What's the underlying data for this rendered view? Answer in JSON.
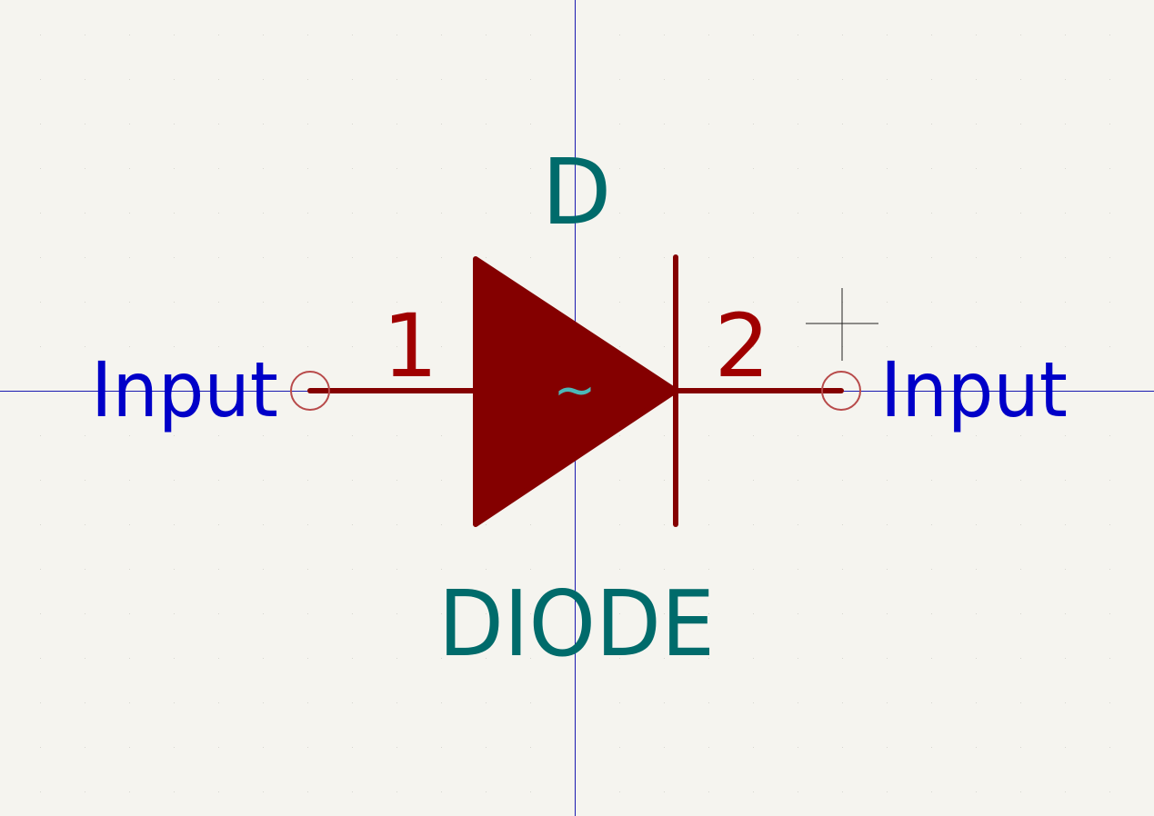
{
  "colors": {
    "background": "#f5f4ef",
    "grid_dot": "#d6d6cf",
    "axis": "#1a1ab0",
    "body": "#840000",
    "pin_circle": "#b84a4a",
    "pin_number": "#a00000",
    "pin_name": "#0000c8",
    "field_text": "#006b6b",
    "dangling_marker": "#4cb8b8",
    "cursor": "#222222"
  },
  "symbol": {
    "reference": "D",
    "value": "DIODE",
    "pin1": {
      "number": "1",
      "name": "Input",
      "electrical_type": "passive"
    },
    "pin2": {
      "number": "2",
      "name": "Input",
      "electrical_type": "passive"
    },
    "center_marker": "~"
  },
  "icons": {
    "cursor": "crosshair-cursor-icon",
    "pin_end": "pin-end-circle-icon"
  }
}
